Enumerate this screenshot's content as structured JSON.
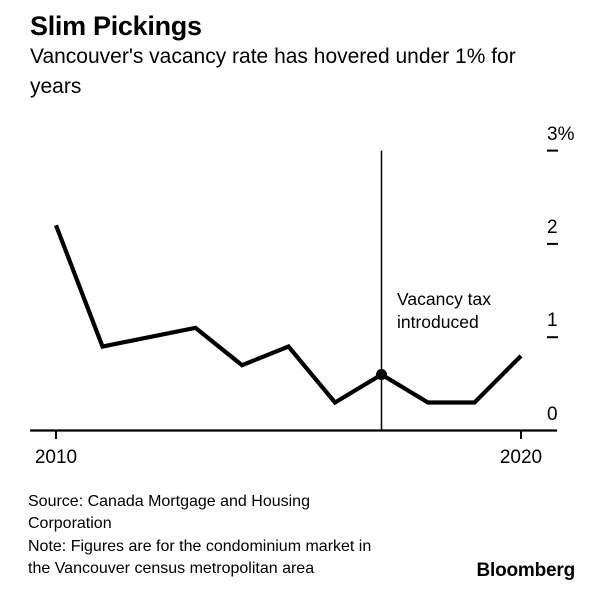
{
  "header": {
    "title": "Slim Pickings",
    "subtitle": "Vancouver's vacancy rate has hovered under 1% for years"
  },
  "chart_data": {
    "type": "line",
    "title": "Slim Pickings",
    "subtitle": "Vancouver's vacancy rate has hovered under 1% for years",
    "x": [
      2010,
      2011,
      2012,
      2013,
      2014,
      2015,
      2016,
      2017,
      2018,
      2019,
      2020
    ],
    "series": [
      {
        "name": "Vacancy rate",
        "values": [
          2.2,
          0.9,
          1.0,
          1.1,
          0.7,
          0.9,
          0.3,
          0.6,
          0.3,
          0.3,
          0.8
        ]
      }
    ],
    "xlim": [
      2010,
      2020
    ],
    "ylim": [
      0,
      3
    ],
    "grid": false,
    "legend": "none",
    "y_axis_side": "right",
    "yticks": [
      {
        "value": 0,
        "label": "0",
        "dash": false
      },
      {
        "value": 1,
        "label": "1",
        "dash": true
      },
      {
        "value": 2,
        "label": "2",
        "dash": true
      },
      {
        "value": 3,
        "label": "3%",
        "dash": true
      }
    ],
    "xticks": [
      {
        "value": 2010,
        "label": "2010"
      },
      {
        "value": 2020,
        "label": "2020"
      }
    ],
    "annotation": {
      "text": "Vacancy tax introduced",
      "x": 2017,
      "marker_value": 0.6
    },
    "colors": {
      "line": "#000000",
      "axis": "#000000",
      "text": "#000000",
      "background": "#ffffff"
    }
  },
  "footer": {
    "source": "Source: Canada Mortgage and Housing Corporation",
    "note": "Note: Figures are for the condominium market in the Vancouver census metropolitan area",
    "brand": "Bloomberg"
  }
}
